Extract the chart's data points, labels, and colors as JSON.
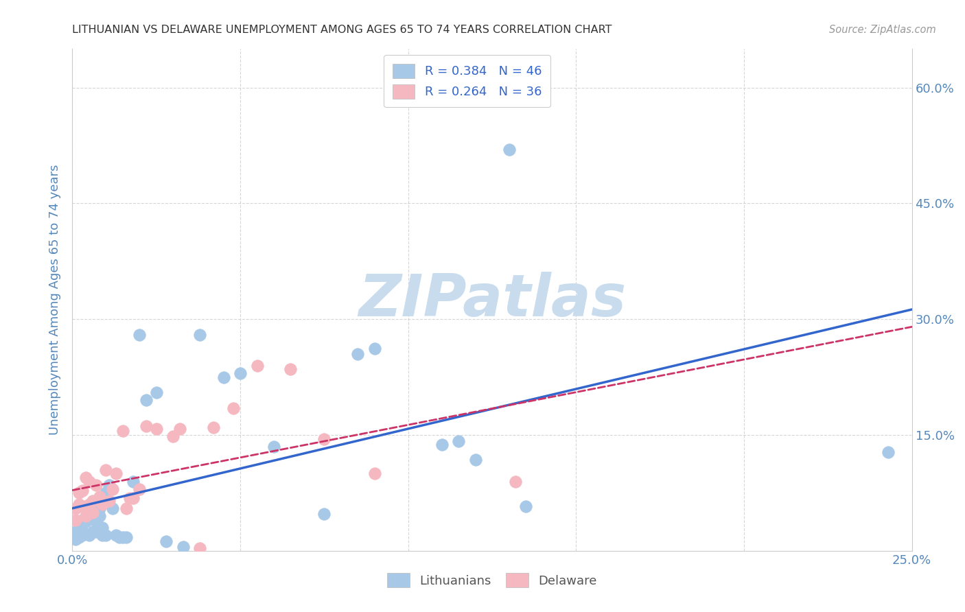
{
  "title": "LITHUANIAN VS DELAWARE UNEMPLOYMENT AMONG AGES 65 TO 74 YEARS CORRELATION CHART",
  "source": "Source: ZipAtlas.com",
  "ylabel": "Unemployment Among Ages 65 to 74 years",
  "xlim": [
    0.0,
    0.25
  ],
  "ylim": [
    0.0,
    0.65
  ],
  "xtick_positions": [
    0.0,
    0.05,
    0.1,
    0.15,
    0.2,
    0.25
  ],
  "xticklabels": [
    "0.0%",
    "",
    "",
    "",
    "",
    "25.0%"
  ],
  "ytick_positions": [
    0.0,
    0.15,
    0.3,
    0.45,
    0.6
  ],
  "yticklabels_right": [
    "",
    "15.0%",
    "30.0%",
    "45.0%",
    "60.0%"
  ],
  "yticklabels_left": [
    "",
    "",
    "",
    "",
    ""
  ],
  "legend_text_1": "R = 0.384   N = 46",
  "legend_text_2": "R = 0.264   N = 36",
  "blue_marker_color": "#A8C8E8",
  "pink_marker_color": "#F5B8C0",
  "blue_line_color": "#3366CC",
  "pink_line_color": "#CC3366",
  "axis_label_color": "#5588BB",
  "tick_label_color": "#5588BB",
  "legend_text_color": "#3366CC",
  "watermark_text": "ZIPatlas",
  "watermark_color": "#C8DCEE",
  "title_color": "#333333",
  "source_color": "#999999",
  "grid_color": "#CCCCCC",
  "blue_x": [
    0.001,
    0.001,
    0.002,
    0.002,
    0.003,
    0.003,
    0.003,
    0.004,
    0.004,
    0.005,
    0.005,
    0.006,
    0.006,
    0.007,
    0.007,
    0.008,
    0.008,
    0.009,
    0.009,
    0.01,
    0.01,
    0.011,
    0.012,
    0.013,
    0.014,
    0.015,
    0.016,
    0.018,
    0.02,
    0.022,
    0.025,
    0.028,
    0.033,
    0.038,
    0.045,
    0.05,
    0.06,
    0.075,
    0.085,
    0.09,
    0.11,
    0.115,
    0.12,
    0.13,
    0.135,
    0.243
  ],
  "blue_y": [
    0.015,
    0.025,
    0.018,
    0.035,
    0.02,
    0.025,
    0.04,
    0.022,
    0.038,
    0.02,
    0.042,
    0.025,
    0.045,
    0.025,
    0.038,
    0.045,
    0.055,
    0.02,
    0.03,
    0.02,
    0.075,
    0.085,
    0.055,
    0.02,
    0.018,
    0.018,
    0.018,
    0.09,
    0.28,
    0.195,
    0.205,
    0.012,
    0.005,
    0.28,
    0.225,
    0.23,
    0.135,
    0.048,
    0.255,
    0.262,
    0.138,
    0.142,
    0.118,
    0.52,
    0.058,
    0.128
  ],
  "pink_x": [
    0.001,
    0.001,
    0.002,
    0.002,
    0.003,
    0.003,
    0.004,
    0.004,
    0.005,
    0.005,
    0.006,
    0.006,
    0.007,
    0.008,
    0.009,
    0.01,
    0.011,
    0.012,
    0.013,
    0.015,
    0.016,
    0.017,
    0.018,
    0.02,
    0.022,
    0.025,
    0.03,
    0.032,
    0.038,
    0.042,
    0.048,
    0.055,
    0.065,
    0.075,
    0.09,
    0.132
  ],
  "pink_y": [
    0.04,
    0.055,
    0.06,
    0.075,
    0.058,
    0.078,
    0.045,
    0.095,
    0.06,
    0.09,
    0.05,
    0.065,
    0.085,
    0.07,
    0.06,
    0.105,
    0.065,
    0.08,
    0.1,
    0.155,
    0.055,
    0.068,
    0.068,
    0.08,
    0.162,
    0.158,
    0.148,
    0.158,
    0.003,
    0.16,
    0.185,
    0.24,
    0.235,
    0.145,
    0.1,
    0.09
  ]
}
